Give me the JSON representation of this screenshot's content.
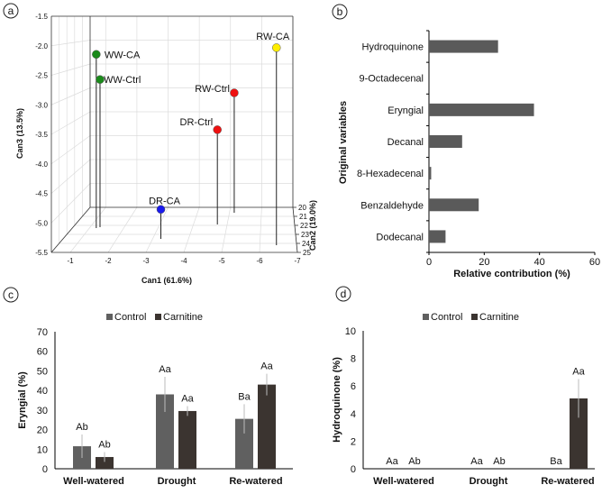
{
  "colors": {
    "control": "#606060",
    "carnitine": "#3b3430",
    "bar_b": "#5a5a5a",
    "green": "#1a8a1a",
    "red": "#ee1111",
    "blue": "#1a1aee",
    "yellow": "#ffee00"
  },
  "chart_data": [
    {
      "panel": "a",
      "type": "scatter3d",
      "xlabel": "Can1 (61.6%)",
      "ylabel": "Can2 (19.0%)",
      "zlabel": "Can3 (13.5%)",
      "xlim": [
        -0.5,
        -7
      ],
      "ylim": [
        20,
        25
      ],
      "zlim": [
        -1.5,
        -5.5
      ],
      "xticks": [
        "-1",
        "-2",
        "-3",
        "-4",
        "-5",
        "-6",
        "-7"
      ],
      "yticks": [
        "20",
        "21",
        "22",
        "23",
        "24",
        "25"
      ],
      "zticks": [
        "-1.5",
        "-2.0",
        "-2.5",
        "-3.0",
        "-3.5",
        "-4.0",
        "-4.5",
        "-5.0",
        "-5.5"
      ],
      "points": [
        {
          "label": "WW-CA",
          "can1": -1.2,
          "can2": 22.3,
          "can3": -2.22,
          "color": "#1a8a1a"
        },
        {
          "label": "WW-Ctrl",
          "can1": -1.29,
          "can2": 22.2,
          "can3": -2.7,
          "color": "#1a8a1a"
        },
        {
          "label": "DR-CA",
          "can1": -3.23,
          "can2": 23.5,
          "can3": -4.97,
          "color": "#1a1aee"
        },
        {
          "label": "DR-Ctrl",
          "can1": -4.71,
          "can2": 21.9,
          "can3": -3.68,
          "color": "#ee1111"
        },
        {
          "label": "RW-Ctrl",
          "can1": -5.15,
          "can2": 20.6,
          "can3": -3.06,
          "color": "#ee1111"
        },
        {
          "label": "RW-CA",
          "can1": -6.45,
          "can2": 24.2,
          "can3": -2.05,
          "color": "#ffee00"
        }
      ]
    },
    {
      "panel": "b",
      "type": "bar",
      "orientation": "horizontal",
      "categories": [
        "Hydroquinone",
        "9-Octadecenal",
        "Eryngial",
        "Decanal",
        "8-Hexadecenal",
        "Benzaldehyde",
        "Dodecanal"
      ],
      "values": [
        25,
        0,
        38,
        12,
        0.8,
        18,
        6
      ],
      "xlabel": "Relative contribution (%)",
      "ylabel": "Original variables",
      "xlim": [
        0,
        60
      ],
      "xticks": [
        "0",
        "20",
        "40",
        "60"
      ]
    },
    {
      "panel": "c",
      "type": "bar",
      "categories": [
        "Well-watered",
        "Drought",
        "Re-watered"
      ],
      "series": [
        {
          "name": "Control",
          "values": [
            11.5,
            38,
            25.5
          ],
          "errors": [
            6,
            9,
            7.5
          ],
          "letters": [
            "Ab",
            "Aa",
            "Ba"
          ]
        },
        {
          "name": "Carnitine",
          "values": [
            6,
            29.5,
            43
          ],
          "errors": [
            2.5,
            2.5,
            5.5
          ],
          "letters": [
            "Ab",
            "Aa",
            "Aa"
          ]
        }
      ],
      "ylabel": "Eryngial (%)",
      "ylim": [
        0,
        70
      ],
      "yticks": [
        "0",
        "10",
        "20",
        "30",
        "40",
        "50",
        "60",
        "70"
      ],
      "legend": "top"
    },
    {
      "panel": "d",
      "type": "bar",
      "categories": [
        "Well-watered",
        "Drought",
        "Re-watered"
      ],
      "series": [
        {
          "name": "Control",
          "values": [
            0,
            0,
            0
          ],
          "errors": [
            0,
            0,
            0
          ],
          "letters": [
            "Aa",
            "Aa",
            "Ba"
          ]
        },
        {
          "name": "Carnitine",
          "values": [
            0,
            0,
            5.1
          ],
          "errors": [
            0,
            0,
            1.4
          ],
          "letters": [
            "Ab",
            "Ab",
            "Aa"
          ]
        }
      ],
      "ylabel": "Hydroquinone (%)",
      "ylim": [
        0,
        10
      ],
      "yticks": [
        "0",
        "2",
        "4",
        "6",
        "8",
        "10"
      ],
      "legend": "top"
    }
  ]
}
